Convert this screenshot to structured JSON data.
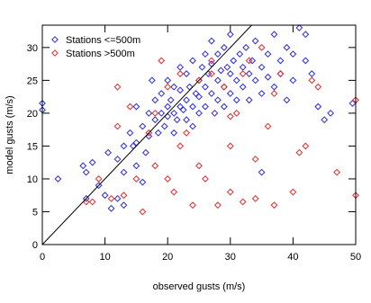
{
  "chart_data": {
    "type": "scatter",
    "x_label": "observed gusts (m/s)",
    "y_label": "model gusts (m/s)",
    "xlim": [
      0,
      50
    ],
    "ylim": [
      0,
      33.4
    ],
    "xticks": [
      0,
      10,
      20,
      30,
      40,
      50
    ],
    "yticks": [
      0,
      5,
      10,
      15,
      20,
      25,
      30
    ],
    "identity_line": true,
    "legend": "upper left",
    "series": [
      {
        "name": "Stations <=500m",
        "color": "#2a2ae6",
        "x": [
          0,
          0,
          2.5,
          6.5,
          7,
          7,
          8,
          9,
          10,
          10.5,
          11,
          12,
          12,
          13,
          13,
          14,
          14.5,
          15,
          15,
          15,
          16,
          16.5,
          17,
          17,
          17.5,
          18,
          18,
          18.5,
          19,
          19,
          19.5,
          20,
          20,
          20,
          20.5,
          21,
          21,
          21,
          21.5,
          22,
          22,
          22,
          22.5,
          23,
          23,
          23,
          23.5,
          24,
          24,
          24,
          24.5,
          25,
          25,
          25,
          25.5,
          26,
          26,
          26,
          26.5,
          27,
          27,
          27,
          27.5,
          28,
          28,
          28,
          28.5,
          29,
          29,
          29,
          29.5,
          30,
          30,
          30,
          30.5,
          31,
          31,
          31.5,
          32,
          32,
          32.5,
          33,
          33,
          33.5,
          34,
          34,
          35,
          35,
          36,
          36,
          37,
          37,
          38,
          38,
          39,
          39,
          40,
          40,
          41,
          42,
          42,
          43,
          44,
          45,
          46,
          49.5,
          13,
          16,
          35
        ],
        "y": [
          20.5,
          21.5,
          10,
          12,
          11,
          7,
          12.5,
          9,
          7.5,
          14,
          5.5,
          7,
          13,
          15,
          11,
          17,
          15,
          12,
          21,
          15.5,
          18,
          14,
          16.5,
          20,
          25,
          19,
          22,
          17,
          20,
          23,
          18,
          21,
          19.5,
          25,
          22,
          20,
          17,
          24,
          19,
          21,
          23.5,
          27,
          20.5,
          22,
          19,
          26,
          24,
          21,
          28,
          18,
          23,
          25,
          20,
          22.5,
          27,
          24,
          29,
          21,
          26,
          23,
          27.5,
          31,
          20,
          25,
          22,
          29,
          26.5,
          24,
          30,
          21,
          27,
          26,
          23,
          32,
          28,
          25,
          22,
          29,
          27,
          24,
          30,
          26,
          22,
          28,
          31,
          25,
          27,
          23,
          29,
          25.5,
          32,
          24,
          28,
          26,
          30,
          22,
          29,
          25,
          33,
          32,
          28,
          26,
          21,
          19,
          20,
          21.5,
          6,
          9.5,
          11
        ]
      },
      {
        "name": "Stations >500m",
        "color": "#e62a2a",
        "x": [
          7,
          8,
          9,
          11,
          12,
          12,
          13,
          14,
          15,
          16,
          17,
          18,
          18,
          19,
          20,
          20,
          21,
          22,
          22,
          23,
          24,
          25,
          25,
          26,
          27,
          27,
          28,
          29,
          30,
          30,
          31,
          32,
          32,
          33,
          34,
          34,
          35,
          36,
          37,
          37,
          38,
          40,
          41,
          42,
          43,
          44,
          47,
          50,
          50,
          30
        ],
        "y": [
          6.5,
          6.5,
          10,
          7,
          18,
          24,
          7.5,
          21,
          10,
          5,
          17,
          12,
          20,
          28,
          24,
          10,
          8,
          26,
          15,
          17,
          6,
          25,
          12,
          10,
          28,
          26,
          6,
          24,
          15,
          8,
          20,
          26,
          6.5,
          28,
          13,
          7,
          30,
          18,
          23,
          6,
          26,
          8,
          14,
          15,
          25,
          24,
          11,
          22,
          7.5,
          19.5
        ]
      }
    ]
  }
}
